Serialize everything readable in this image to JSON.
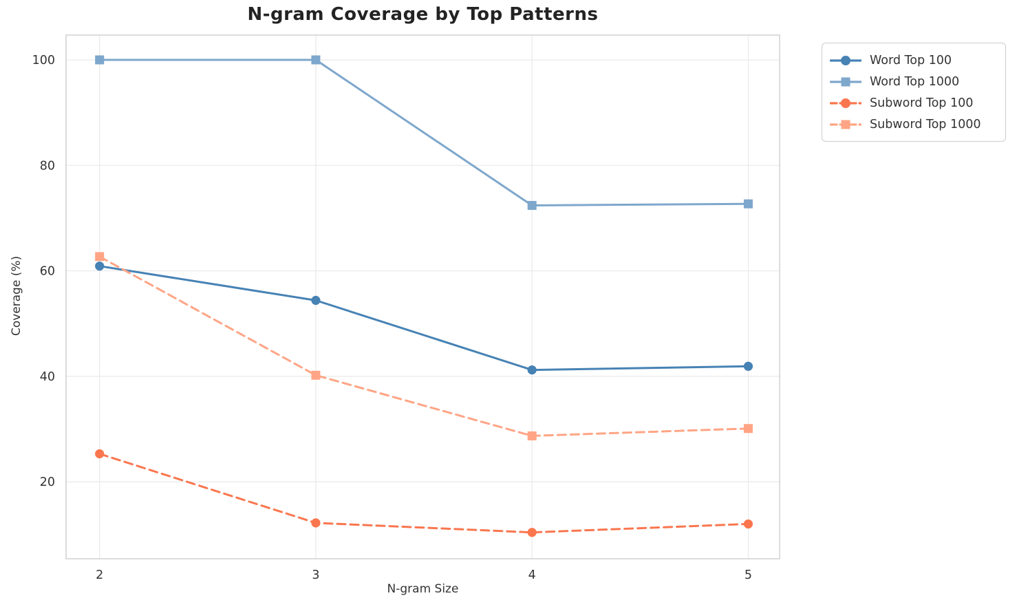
{
  "chart_data": {
    "type": "line",
    "title": "N-gram Coverage by Top Patterns",
    "xlabel": "N-gram Size",
    "ylabel": "Coverage (%)",
    "x": [
      2,
      3,
      4,
      5
    ],
    "xticks": [
      "2",
      "3",
      "4",
      "5"
    ],
    "yticks": [
      20,
      40,
      60,
      80,
      100
    ],
    "xlim": [
      1.845,
      5.145
    ],
    "ylim": [
      5.4,
      104.7
    ],
    "grid": true,
    "legend_position": "outside-top-right",
    "series": [
      {
        "name": "Word Top 100",
        "values": [
          60.9,
          54.4,
          41.2,
          41.9
        ],
        "color": "#4682B4",
        "marker": "circle",
        "linestyle": "solid"
      },
      {
        "name": "Word Top 1000",
        "values": [
          100.0,
          100.0,
          72.4,
          72.7
        ],
        "color": "#7EA7CC",
        "marker": "square",
        "linestyle": "solid"
      },
      {
        "name": "Subword Top 100",
        "values": [
          25.3,
          12.2,
          10.4,
          12.0
        ],
        "color": "#FA764E",
        "marker": "circle",
        "linestyle": "dashed"
      },
      {
        "name": "Subword Top 1000",
        "values": [
          62.7,
          40.2,
          28.7,
          30.1
        ],
        "color": "#FFA585",
        "marker": "square",
        "linestyle": "dashed"
      }
    ],
    "style": {
      "grid_color": "#e9e9e9",
      "spine_color": "#cccccc",
      "tick_label_color": "#333333",
      "line_width": 3
    }
  }
}
